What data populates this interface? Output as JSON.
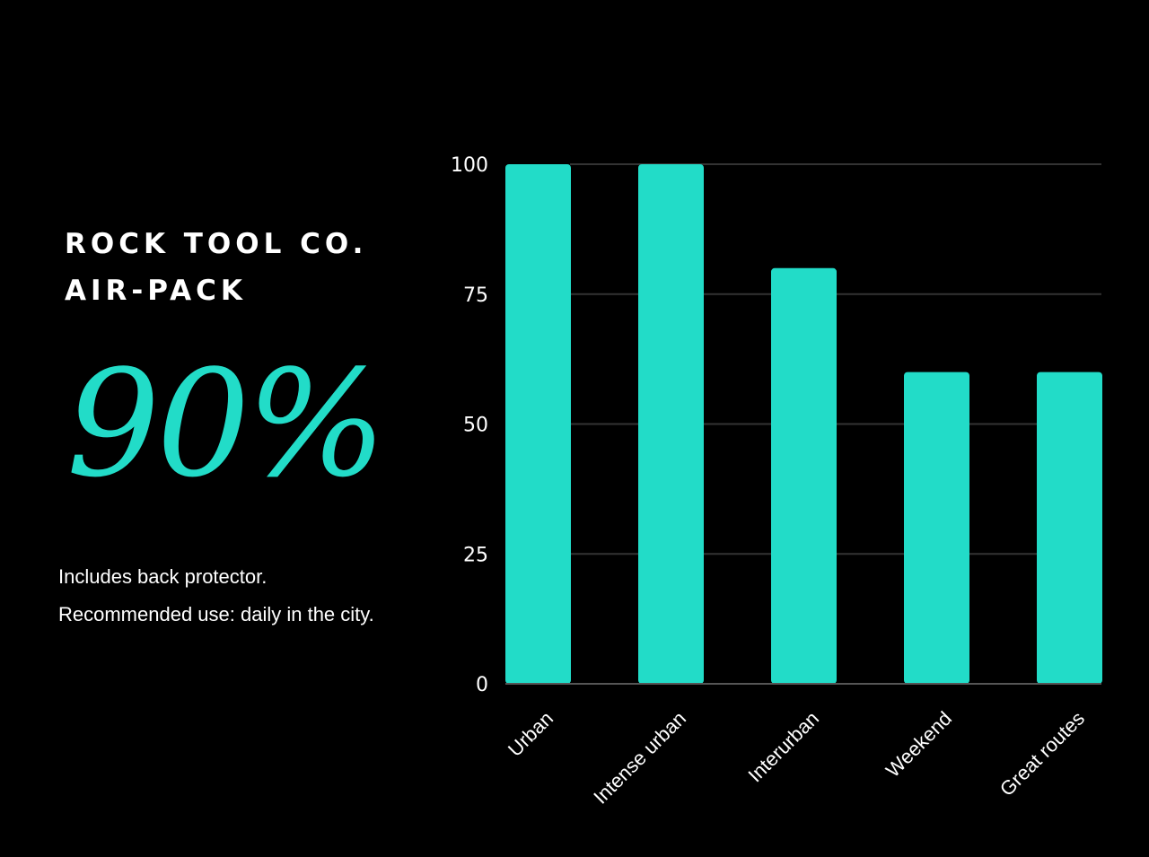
{
  "brand": {
    "line1": "ROCK TOOL CO.",
    "line2": "AIR-PACK"
  },
  "stat": {
    "value": "90%"
  },
  "description": {
    "line1": "Includes back protector.",
    "line2": "Recommended use: daily in the city."
  },
  "colors": {
    "background": "#000000",
    "bar": "#22dcc8",
    "accent_text": "#22dcc8",
    "grid": "#333333",
    "axis": "#555555",
    "text": "#ffffff"
  },
  "chart_data": {
    "type": "bar",
    "title": "",
    "xlabel": "",
    "ylabel": "",
    "categories": [
      "Urban",
      "Intense urban",
      "Interurban",
      "Weekend",
      "Great routes"
    ],
    "values": [
      100,
      100,
      80,
      60,
      60
    ],
    "ylim": [
      0,
      100
    ],
    "yticks": [
      0,
      25,
      50,
      75,
      100
    ],
    "grid": true,
    "legend": "none"
  }
}
